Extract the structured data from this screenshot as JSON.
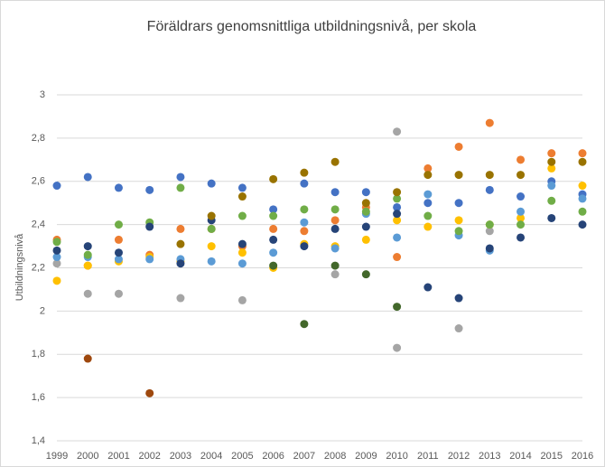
{
  "chart_data": {
    "type": "scatter",
    "title": "Föräldrars genomsnittliga utbildningsnivå, per skola",
    "y_label": "Utbildningsnivå",
    "categories": [
      "1999",
      "2000",
      "2001",
      "2002",
      "2003",
      "2004",
      "2005",
      "2006",
      "2007",
      "2008",
      "2009",
      "2010",
      "2011",
      "2012",
      "2013",
      "2014",
      "2015",
      "2016"
    ],
    "ylim": [
      1.4,
      3
    ],
    "yticks": [
      {
        "value": 1.4,
        "label": "1,4"
      },
      {
        "value": 1.6,
        "label": "1,6"
      },
      {
        "value": 1.8,
        "label": "1,8"
      },
      {
        "value": 2,
        "label": "2"
      },
      {
        "value": 2.2,
        "label": "2,2"
      },
      {
        "value": 2.4,
        "label": "2,4"
      },
      {
        "value": 2.6,
        "label": "2,6"
      },
      {
        "value": 2.8,
        "label": "2,8"
      },
      {
        "value": 3,
        "label": "3"
      }
    ],
    "grid": true,
    "series": [
      {
        "color": "#4472c4",
        "values": [
          2.58,
          2.62,
          2.57,
          2.56,
          2.62,
          2.59,
          2.57,
          2.47,
          2.59,
          2.55,
          2.55,
          2.48,
          2.5,
          2.5,
          2.56,
          2.53,
          2.6,
          2.54
        ]
      },
      {
        "color": "#ed7d31",
        "values": [
          2.33,
          2.21,
          2.33,
          2.26,
          2.38,
          2.38,
          2.3,
          2.38,
          2.37,
          2.42,
          2.48,
          2.25,
          2.66,
          2.76,
          2.87,
          2.7,
          2.73,
          2.73
        ]
      },
      {
        "color": "#a5a5a5",
        "values": [
          2.22,
          2.08,
          2.08,
          null,
          2.06,
          null,
          2.05,
          null,
          null,
          2.17,
          null,
          1.83,
          null,
          1.92,
          2.37,
          null,
          null,
          null
        ]
      },
      {
        "color": "#a5a5a5",
        "values": [
          null,
          null,
          null,
          null,
          null,
          null,
          null,
          null,
          null,
          null,
          null,
          2.83,
          null,
          null,
          null,
          null,
          null,
          null
        ]
      },
      {
        "color": "#ffc000",
        "values": [
          2.14,
          2.21,
          2.23,
          2.25,
          2.23,
          2.3,
          2.27,
          2.2,
          2.31,
          2.3,
          2.33,
          2.42,
          2.39,
          2.42,
          2.4,
          2.43,
          2.66,
          2.58
        ]
      },
      {
        "color": "#5b9bd5",
        "values": [
          2.25,
          2.25,
          2.24,
          2.24,
          2.24,
          2.23,
          2.22,
          2.27,
          2.41,
          2.29,
          2.45,
          2.34,
          2.54,
          2.35,
          2.28,
          2.46,
          2.58,
          2.52
        ]
      },
      {
        "color": "#70ad47",
        "values": [
          2.32,
          2.26,
          2.4,
          2.41,
          2.57,
          2.38,
          2.44,
          2.44,
          2.47,
          2.47,
          2.46,
          2.52,
          2.44,
          2.37,
          2.4,
          2.4,
          2.51,
          2.46
        ]
      },
      {
        "color": "#264478",
        "values": [
          2.28,
          2.3,
          2.27,
          2.39,
          2.22,
          2.42,
          2.31,
          2.33,
          2.3,
          2.38,
          2.39,
          2.45,
          2.11,
          2.06,
          2.29,
          2.34,
          2.43,
          2.4
        ]
      },
      {
        "color": "#9e480e",
        "values": [
          null,
          1.78,
          null,
          1.62,
          null,
          null,
          null,
          null,
          null,
          null,
          null,
          null,
          null,
          null,
          null,
          null,
          null,
          null
        ]
      },
      {
        "color": "#43682b",
        "values": [
          null,
          null,
          null,
          null,
          null,
          null,
          null,
          2.21,
          1.94,
          2.21,
          2.17,
          2.02,
          null,
          null,
          null,
          null,
          null,
          null
        ]
      },
      {
        "color": "#997300",
        "values": [
          null,
          null,
          null,
          null,
          2.31,
          2.44,
          2.53,
          2.61,
          2.64,
          2.69,
          2.5,
          2.55,
          2.63,
          2.63,
          2.63,
          2.63,
          2.69,
          2.69
        ]
      }
    ]
  }
}
